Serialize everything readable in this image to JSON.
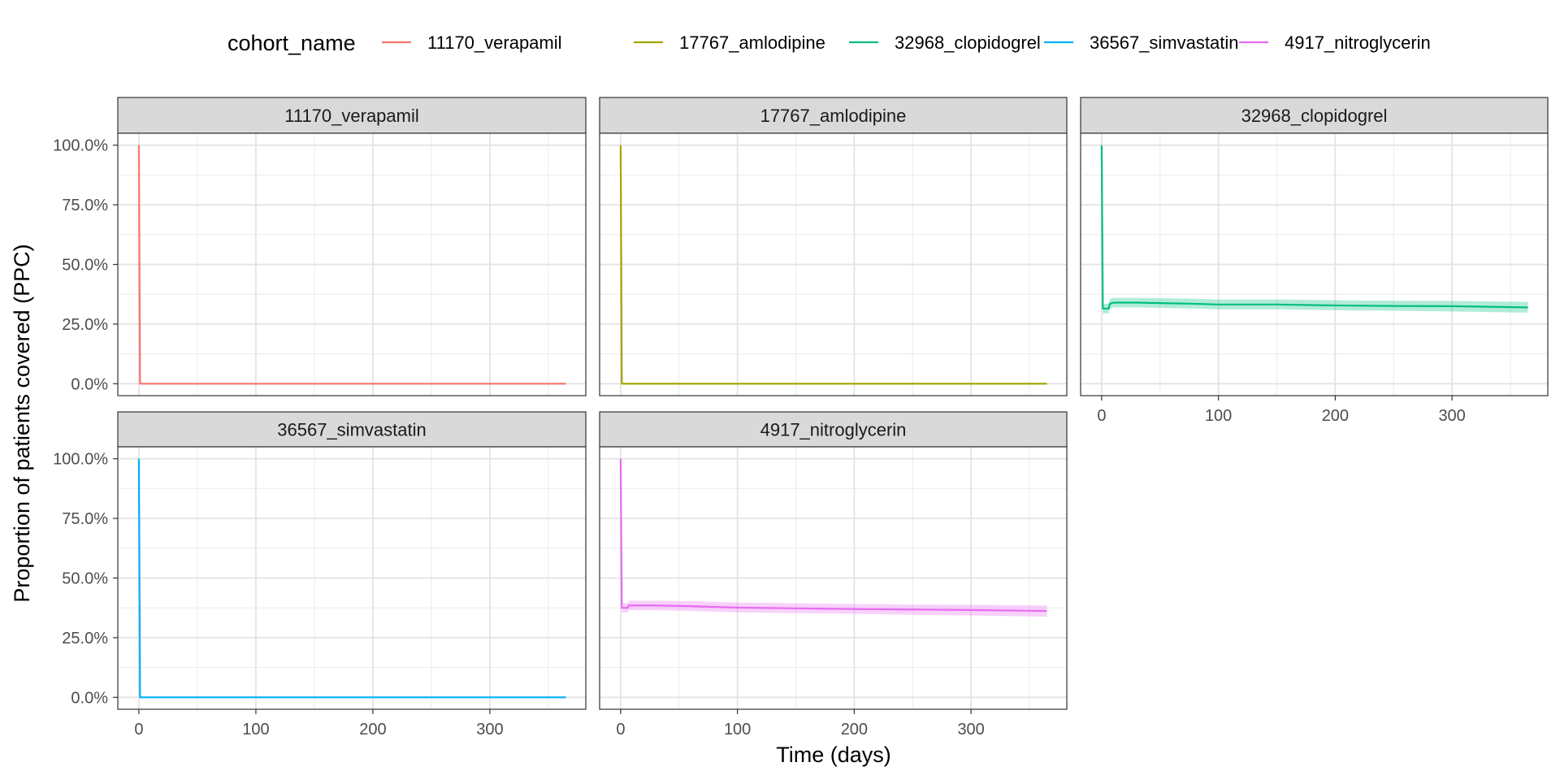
{
  "chart_data": {
    "type": "line",
    "facet_by": "cohort_name",
    "xlabel": "Time (days)",
    "ylabel": "Proportion of patients covered (PPC)",
    "xlim": [
      -18,
      382
    ],
    "ylim": [
      -5,
      105
    ],
    "x_ticks": [
      0,
      100,
      200,
      300
    ],
    "y_ticks": [
      0,
      25,
      50,
      75,
      100
    ],
    "y_tick_labels": [
      "0.0%",
      "25.0%",
      "50.0%",
      "75.0%",
      "100.0%"
    ],
    "grid": true,
    "legend": {
      "title": "cohort_name",
      "position": "top",
      "entries": [
        "11170_verapamil",
        "17767_amlodipine",
        "32968_clopidogrel",
        "36567_simvastatin",
        "4917_nitroglycerin"
      ]
    },
    "colors": {
      "11170_verapamil": "#F8766D",
      "17767_amlodipine": "#A3A500",
      "32968_clopidogrel": "#00BF7D",
      "36567_simvastatin": "#00B0F6",
      "4917_nitroglycerin": "#E76BF3"
    },
    "series": [
      {
        "name": "11170_verapamil",
        "x": [
          0,
          1,
          365
        ],
        "y": [
          100,
          0,
          0
        ]
      },
      {
        "name": "17767_amlodipine",
        "x": [
          0,
          1,
          365
        ],
        "y": [
          100,
          0,
          0
        ]
      },
      {
        "name": "32968_clopidogrel",
        "x": [
          0,
          1,
          6,
          7,
          10,
          30,
          60,
          80,
          100,
          150,
          200,
          250,
          300,
          365
        ],
        "y": [
          100,
          31.5,
          31.5,
          33.5,
          34,
          34,
          33.7,
          33.5,
          33.2,
          33.2,
          32.8,
          32.6,
          32.5,
          32
        ],
        "ci_lower": [
          100,
          29.5,
          29.5,
          31.5,
          32,
          32,
          31.7,
          31.5,
          31.2,
          31.2,
          30.8,
          30.6,
          30.3,
          29.8
        ],
        "ci_upper": [
          100,
          33.5,
          33.5,
          35.5,
          36,
          36,
          35.8,
          35.6,
          35.3,
          35.3,
          35,
          34.8,
          34.7,
          34.3
        ]
      },
      {
        "name": "36567_simvastatin",
        "x": [
          0,
          1,
          365
        ],
        "y": [
          100,
          0,
          0
        ]
      },
      {
        "name": "4917_nitroglycerin",
        "x": [
          0,
          1,
          6,
          7,
          10,
          30,
          60,
          100,
          150,
          200,
          250,
          300,
          365
        ],
        "y": [
          100,
          37.5,
          37.5,
          38.5,
          38.5,
          38.5,
          38.2,
          37.6,
          37.3,
          37,
          36.8,
          36.6,
          36.2
        ],
        "ci_lower": [
          100,
          35.5,
          35.5,
          36.5,
          36.5,
          36.5,
          36.2,
          35.6,
          35.3,
          35,
          34.6,
          34.3,
          33.8
        ],
        "ci_upper": [
          100,
          39.5,
          39.5,
          40.5,
          40.5,
          40.5,
          40.3,
          39.7,
          39.4,
          39.1,
          38.9,
          38.8,
          38.5
        ]
      }
    ]
  }
}
